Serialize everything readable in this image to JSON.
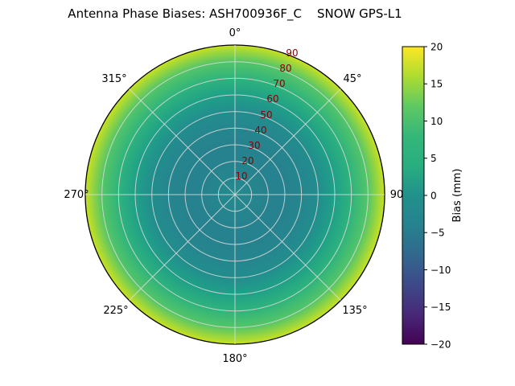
{
  "title": "Antenna Phase Biases: ASH700936F_C    SNOW GPS-L1",
  "polar": {
    "angle_labels": [
      "0°",
      "45°",
      "90",
      "135°",
      "180°",
      "225°",
      "270°",
      "315°"
    ],
    "radial_labels": [
      "10",
      "20",
      "30",
      "40",
      "50",
      "60",
      "70",
      "80",
      "90"
    ],
    "radial_label_color": "#8b0000",
    "grid_color": "#dcdcdc",
    "outline_color": "#000000"
  },
  "colorbar": {
    "label": "Bias (mm)",
    "ticks": [
      "20",
      "15",
      "10",
      "5",
      "0",
      "−5",
      "−10",
      "−15",
      "−20"
    ],
    "gradient_top_to_bottom": [
      "#fde725",
      "#addc30",
      "#5ec962",
      "#35b779",
      "#28ae80",
      "#21918c",
      "#26828e",
      "#31688e",
      "#3e4989",
      "#482878",
      "#440154"
    ],
    "range": [
      -20,
      20
    ]
  },
  "chart_data": {
    "type": "heatmap",
    "projection": "polar",
    "title": "Antenna Phase Biases: ASH700936F_C    SNOW GPS-L1",
    "colormap": "viridis",
    "color_range_mm": [
      -20,
      20
    ],
    "colorbar_label": "Bias (mm)",
    "azimuth_ticks_deg": [
      0,
      45,
      90,
      135,
      180,
      225,
      270,
      315
    ],
    "zenith_ticks_deg": [
      10,
      20,
      30,
      40,
      50,
      60,
      70,
      80,
      90
    ],
    "radial_profile": {
      "zenith_deg": [
        0,
        10,
        20,
        30,
        40,
        50,
        60,
        70,
        80,
        90
      ],
      "bias_mm": [
        -2,
        -3,
        -4,
        -4,
        -3,
        -1,
        2,
        6,
        11,
        17
      ],
      "color_hex": [
        "#238a8d",
        "#25868e",
        "#26828e",
        "#26828e",
        "#25868e",
        "#228d8d",
        "#1fa088",
        "#2fb37c",
        "#54c568",
        "#c9e120"
      ]
    }
  }
}
